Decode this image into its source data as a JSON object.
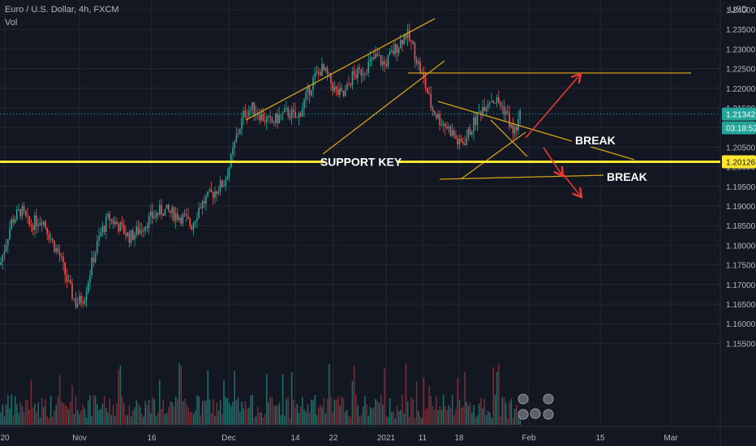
{
  "header": {
    "symbol_title": "Euro / U.S. Dollar, 4h, FXCM",
    "indicator": "Vol",
    "currency": "USD"
  },
  "colors": {
    "background": "#131722",
    "grid": "#242733",
    "up": "#26a69a",
    "down": "#ef5350",
    "vol_up": "#1f6f6a",
    "vol_down": "#7a2e35",
    "trendline": "#d4a017",
    "support": "#ffe62e",
    "arrow": "#e53935",
    "axis_text": "#b2b5be"
  },
  "chart_data": {
    "type": "candlestick",
    "ylim": [
      1.1525,
      1.2425
    ],
    "y_ticks": [
      "1.24000",
      "1.23500",
      "1.23000",
      "1.22500",
      "1.22000",
      "1.21500",
      "1.21000",
      "1.20500",
      "1.20000",
      "1.19500",
      "1.19000",
      "1.18500",
      "1.18000",
      "1.17500",
      "1.17000",
      "1.16500",
      "1.16000",
      "1.15500"
    ],
    "x_ticks": [
      "20",
      "Nov",
      "16",
      "Dec",
      "14",
      "22",
      "2021",
      "11",
      "18",
      "Feb",
      "15",
      "Mar"
    ],
    "price_path": [
      [
        0,
        1.175
      ],
      [
        14,
        1.186
      ],
      [
        26,
        1.189
      ],
      [
        36,
        1.185
      ],
      [
        52,
        1.187
      ],
      [
        64,
        1.181
      ],
      [
        74,
        1.177
      ],
      [
        84,
        1.17
      ],
      [
        94,
        1.165
      ],
      [
        104,
        1.167
      ],
      [
        114,
        1.176
      ],
      [
        124,
        1.183
      ],
      [
        134,
        1.187
      ],
      [
        146,
        1.185
      ],
      [
        160,
        1.182
      ],
      [
        172,
        1.184
      ],
      [
        186,
        1.187
      ],
      [
        200,
        1.189
      ],
      [
        214,
        1.188
      ],
      [
        226,
        1.187
      ],
      [
        236,
        1.185
      ],
      [
        246,
        1.19
      ],
      [
        256,
        1.192
      ],
      [
        266,
        1.194
      ],
      [
        276,
        1.196
      ],
      [
        284,
        1.201
      ],
      [
        292,
        1.208
      ],
      [
        302,
        1.214
      ],
      [
        312,
        1.215
      ],
      [
        322,
        1.213
      ],
      [
        334,
        1.211
      ],
      [
        346,
        1.213
      ],
      [
        356,
        1.214
      ],
      [
        366,
        1.212
      ],
      [
        376,
        1.217
      ],
      [
        386,
        1.222
      ],
      [
        396,
        1.225
      ],
      [
        404,
        1.223
      ],
      [
        414,
        1.219
      ],
      [
        424,
        1.218
      ],
      [
        434,
        1.223
      ],
      [
        444,
        1.224
      ],
      [
        454,
        1.226
      ],
      [
        464,
        1.228
      ],
      [
        474,
        1.226
      ],
      [
        484,
        1.229
      ],
      [
        494,
        1.232
      ],
      [
        500,
        1.234
      ],
      [
        508,
        1.231
      ],
      [
        516,
        1.226
      ],
      [
        524,
        1.221
      ],
      [
        532,
        1.215
      ],
      [
        542,
        1.212
      ],
      [
        552,
        1.21
      ],
      [
        560,
        1.208
      ],
      [
        566,
        1.2055
      ],
      [
        574,
        1.207
      ],
      [
        584,
        1.211
      ],
      [
        594,
        1.215
      ],
      [
        604,
        1.2175
      ],
      [
        614,
        1.2165
      ],
      [
        624,
        1.214
      ],
      [
        632,
        1.2085
      ],
      [
        638,
        1.2105
      ],
      [
        642,
        1.2135
      ]
    ],
    "current_price": "1.21342",
    "countdown": "03:18:52",
    "support_price": "1.20126",
    "annotations": [
      "SUPPORT KEY",
      "BREAK",
      "BREAK"
    ]
  }
}
